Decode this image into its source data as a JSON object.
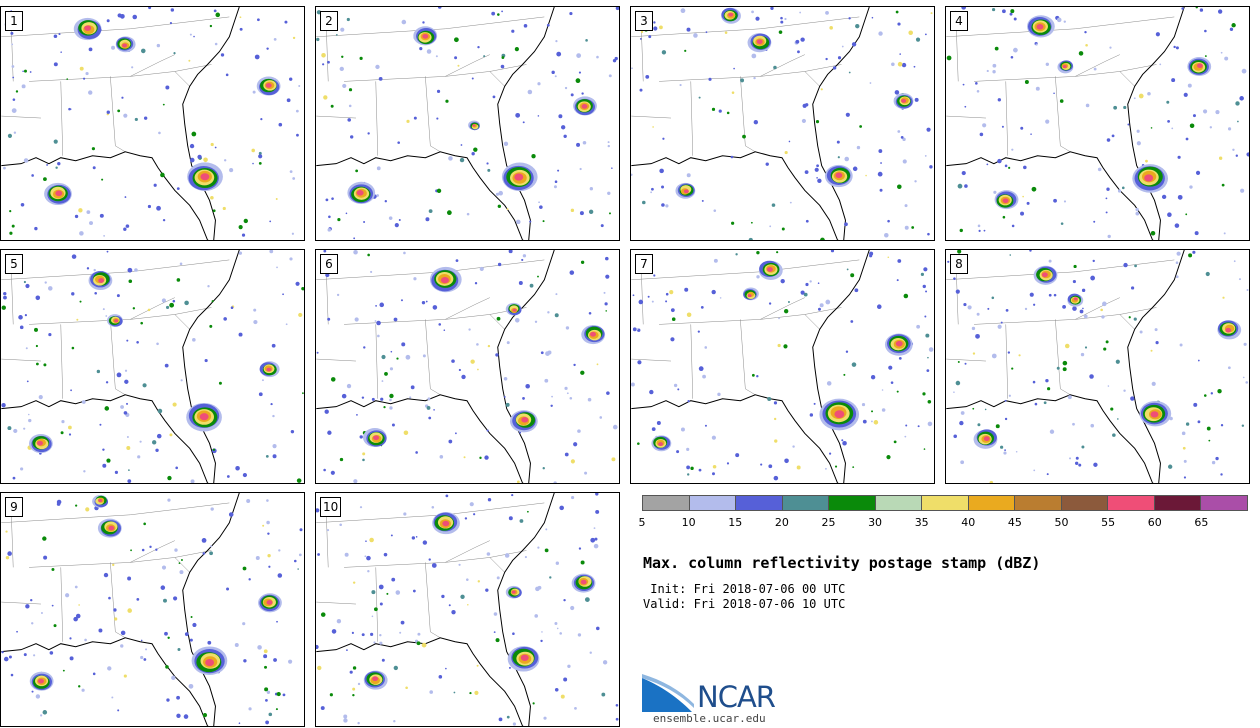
{
  "panels": [
    "1",
    "2",
    "3",
    "4",
    "5",
    "6",
    "7",
    "8",
    "9",
    "10"
  ],
  "legend": {
    "colors": [
      "#a3a3a3",
      "#b3bcec",
      "#5660d8",
      "#4e8f94",
      "#0a8a0a",
      "#b9d9b6",
      "#efde69",
      "#eaaa1f",
      "#ba7d30",
      "#8c5a3c",
      "#ef4e77",
      "#6b1837",
      "#aa4ea8"
    ],
    "ticks": [
      "5",
      "10",
      "15",
      "20",
      "25",
      "30",
      "35",
      "40",
      "45",
      "50",
      "55",
      "60",
      "65"
    ]
  },
  "title": "Max. column reflectivity postage stamp (dBZ)",
  "init": " Init: Fri 2018-07-06 00 UTC",
  "valid": "Valid: Fri 2018-07-06 10 UTC",
  "logo": {
    "name": "NCAR",
    "url": "ensemble.ucar.edu"
  }
}
